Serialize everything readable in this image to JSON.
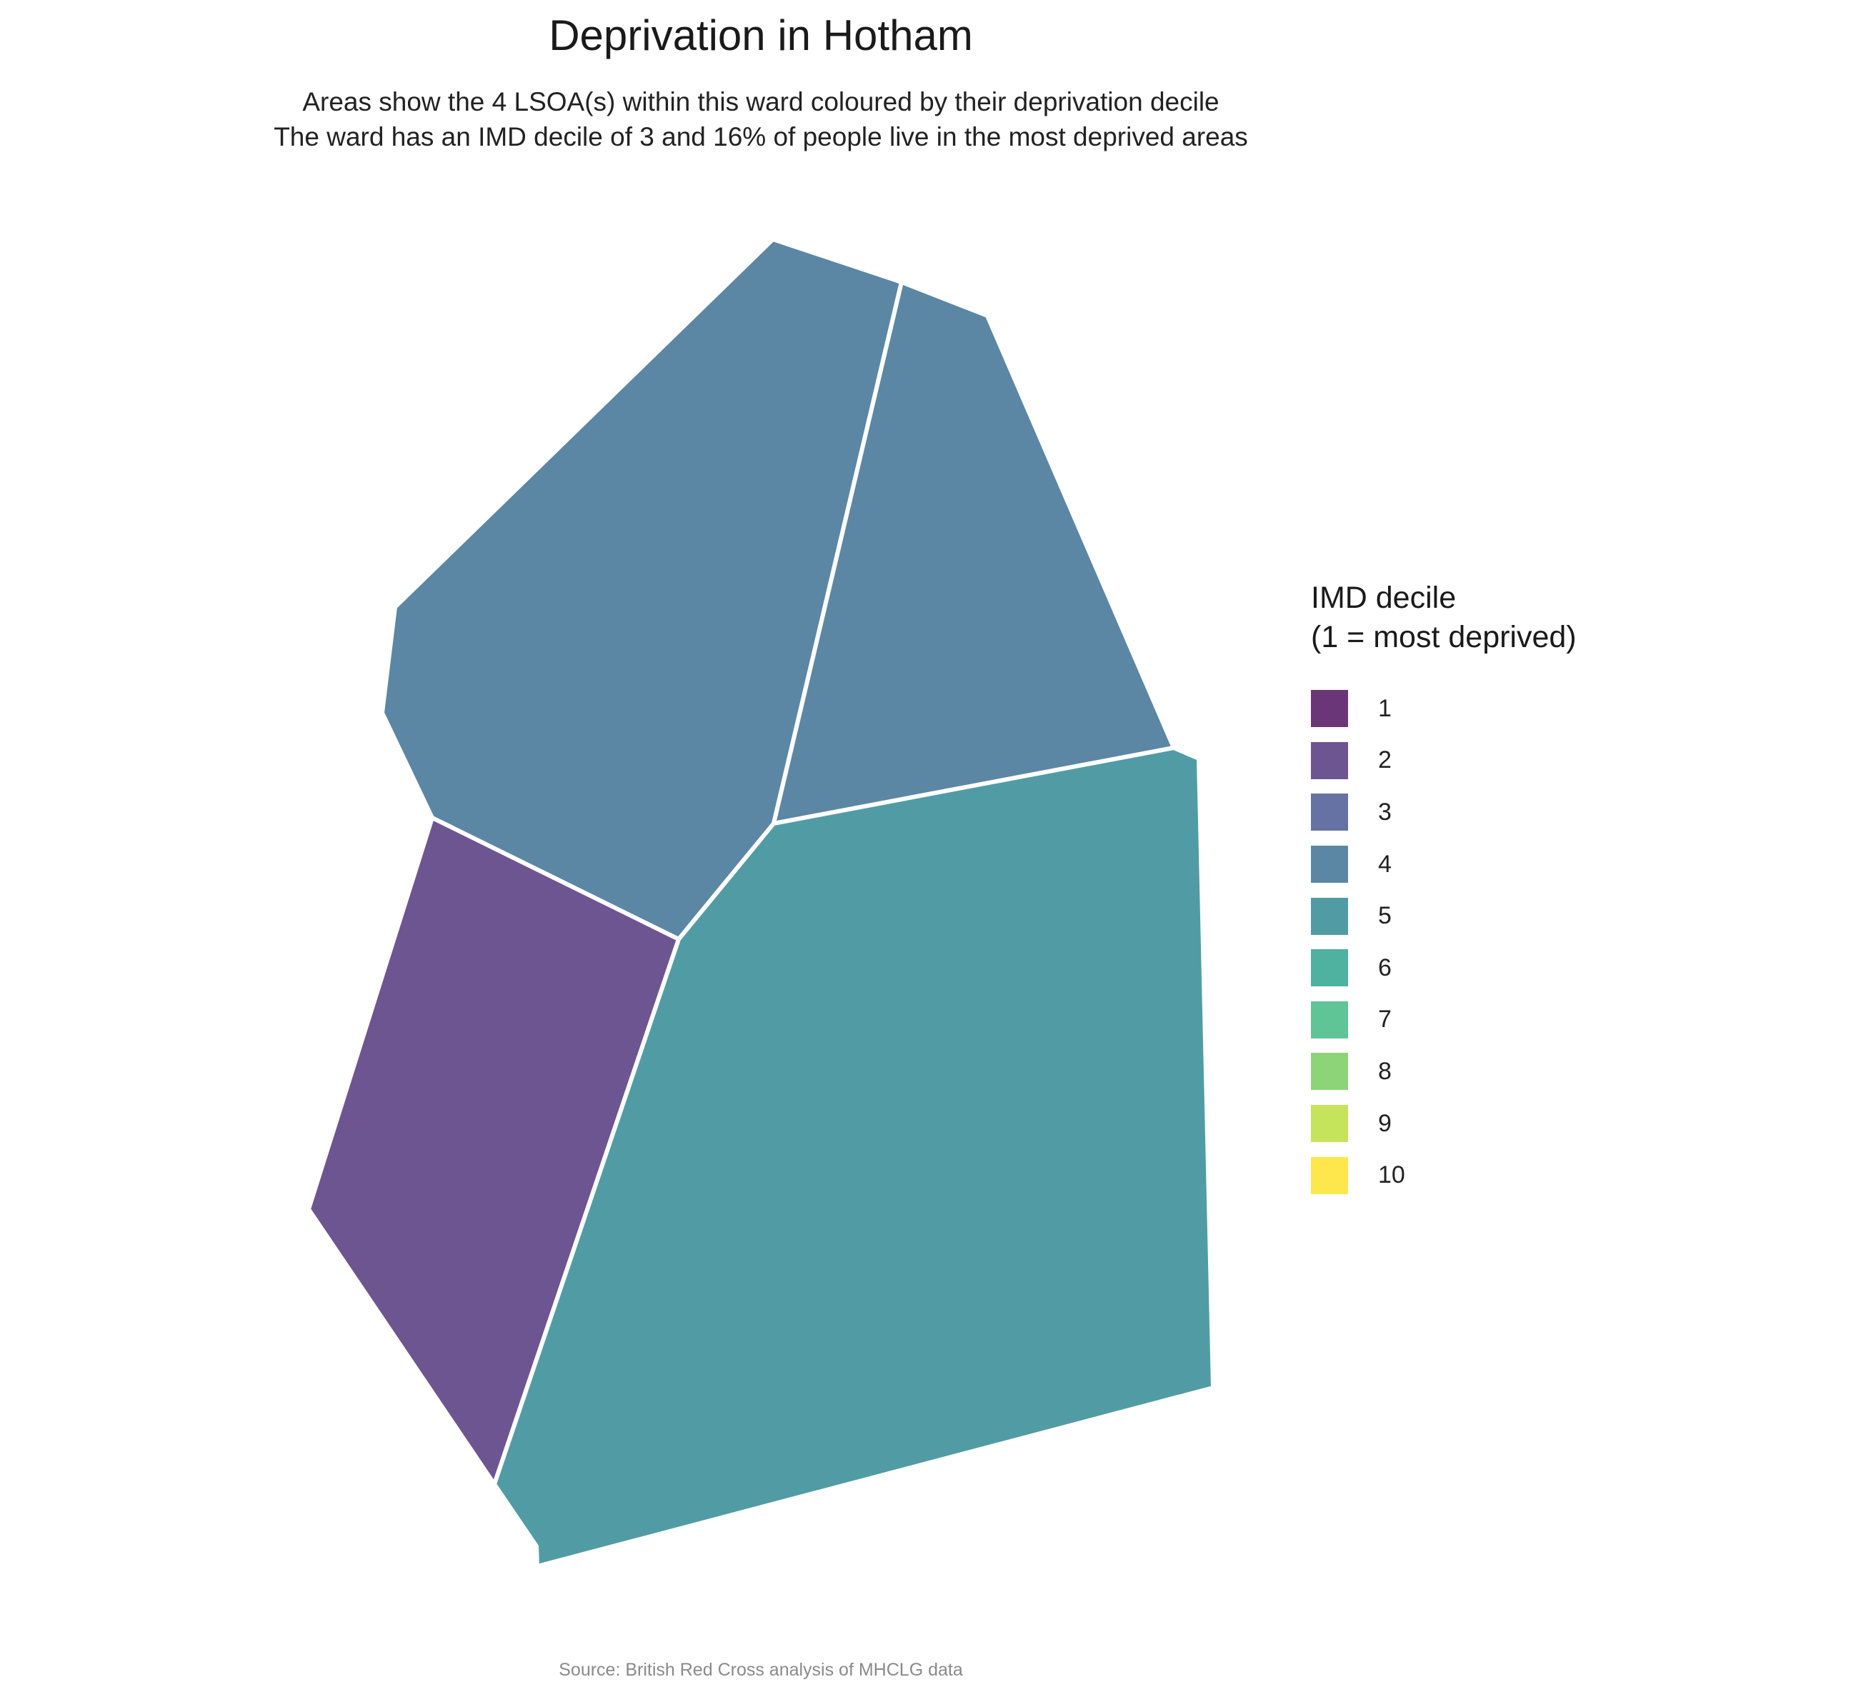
{
  "title": "Deprivation in Hotham",
  "subtitle": {
    "line1": "Areas show the 4 LSOA(s) within this ward coloured by their deprivation decile",
    "line2": "The ward has an IMD decile of 3 and 16% of people live in the most deprived areas"
  },
  "legend": {
    "title_line1": "IMD decile",
    "title_line2": "(1 = most deprived)",
    "items": [
      {
        "label": "1",
        "color": "#6b3677"
      },
      {
        "label": "2",
        "color": "#6d5592"
      },
      {
        "label": "3",
        "color": "#6672a3"
      },
      {
        "label": "4",
        "color": "#5b87a5"
      },
      {
        "label": "5",
        "color": "#519ca4"
      },
      {
        "label": "6",
        "color": "#4fb1a0"
      },
      {
        "label": "7",
        "color": "#5fc496"
      },
      {
        "label": "8",
        "color": "#8dd479"
      },
      {
        "label": "9",
        "color": "#c6e35c"
      },
      {
        "label": "10",
        "color": "#fde74c"
      }
    ]
  },
  "areas": [
    {
      "name": "north-west LSOA",
      "decile": 4
    },
    {
      "name": "north-east LSOA",
      "decile": 4
    },
    {
      "name": "south-west LSOA",
      "decile": 2
    },
    {
      "name": "south-east LSOA",
      "decile": 5
    }
  ],
  "caption": "Source: British Red Cross analysis of MHCLG data"
}
